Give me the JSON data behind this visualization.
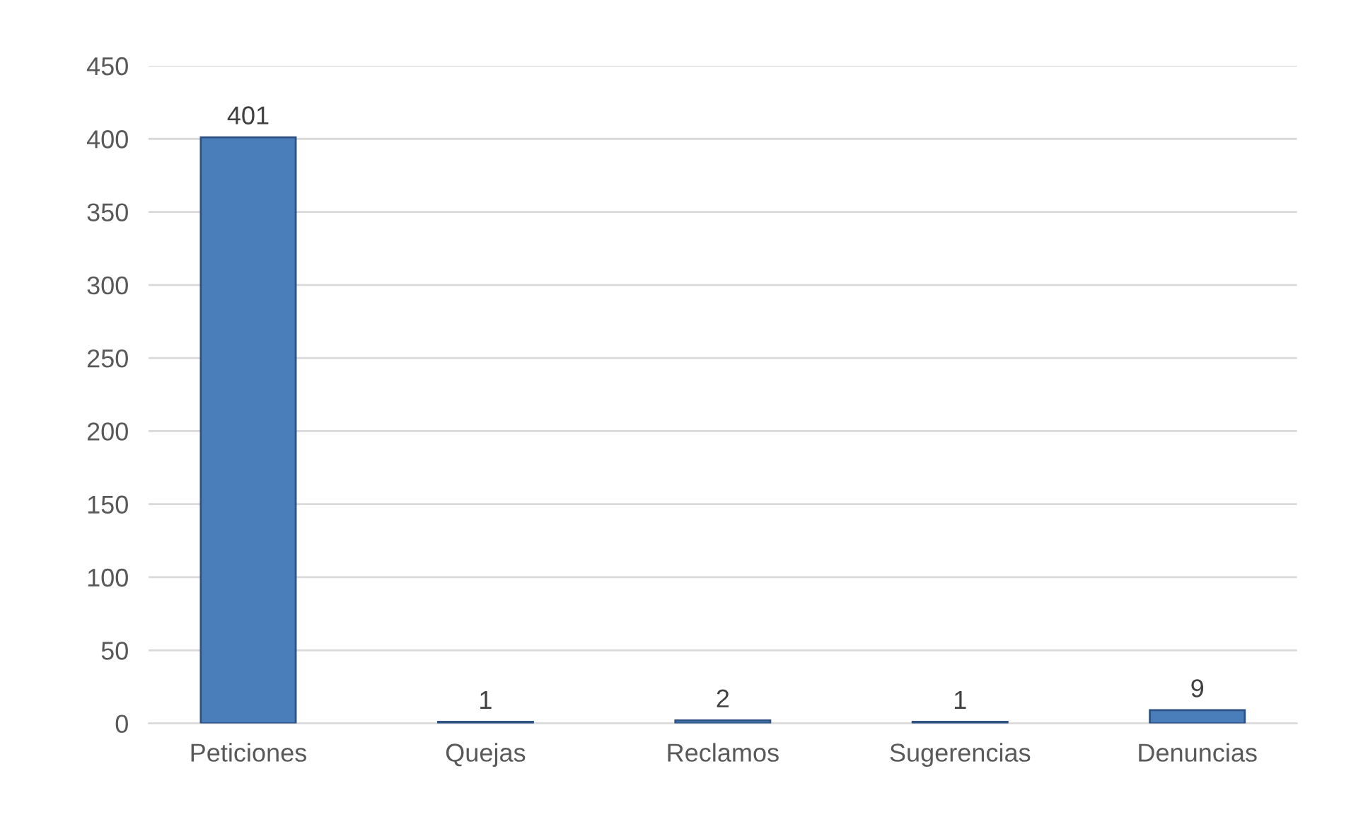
{
  "chart_data": {
    "type": "bar",
    "categories": [
      "Peticiones",
      "Quejas",
      "Reclamos",
      "Sugerencias",
      "Denuncias"
    ],
    "values": [
      401,
      1,
      2,
      1,
      9
    ],
    "color": "#4a7ebb",
    "ylim": [
      0,
      450
    ],
    "yticks": [
      0,
      50,
      100,
      150,
      200,
      250,
      300,
      350,
      400,
      450
    ],
    "grid": "y",
    "data_labels": true
  }
}
